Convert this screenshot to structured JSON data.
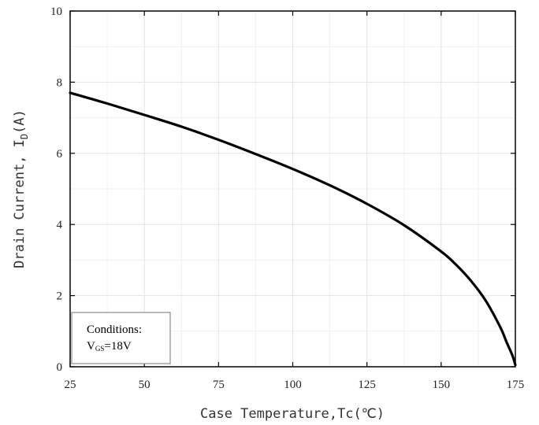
{
  "chart_data": {
    "type": "line",
    "xlabel": "Case Temperature,Tc(℃)",
    "ylabel": {
      "main": "Drain Current, I",
      "sub": "D",
      "unit": "(A)"
    },
    "xlim": [
      25,
      175
    ],
    "ylim": [
      0,
      10
    ],
    "x_ticks": [
      25,
      50,
      75,
      100,
      125,
      150,
      175
    ],
    "y_ticks": [
      0,
      2,
      4,
      6,
      8,
      10
    ],
    "grid": true,
    "series": [
      {
        "color": "#000000",
        "x": [
          25,
          37.5,
          50,
          62.5,
          75,
          87.5,
          100,
          112.5,
          125,
          137.5,
          150,
          155,
          160,
          165,
          170,
          172,
          174,
          175
        ],
        "y": [
          7.7,
          7.4,
          7.08,
          6.75,
          6.38,
          5.98,
          5.56,
          5.1,
          4.58,
          3.98,
          3.24,
          2.87,
          2.42,
          1.86,
          1.1,
          0.7,
          0.32,
          0.05
        ]
      }
    ],
    "annotation": {
      "title": "Conditions:",
      "line_main": "V",
      "line_sub": "GS",
      "line_value": "=18V",
      "position": "bottom-left"
    }
  }
}
